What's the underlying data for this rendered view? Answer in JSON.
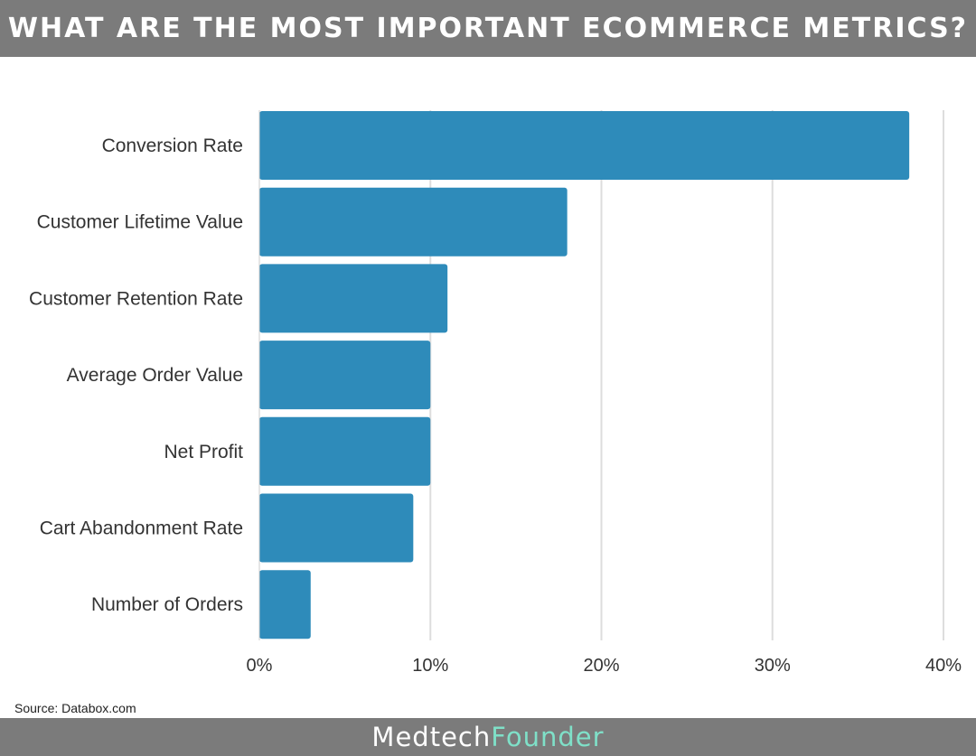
{
  "header": {
    "title": "WHAT ARE THE MOST IMPORTANT ECOMMERCE METRICS?"
  },
  "source": "Source: Databox.com",
  "footer": {
    "brand_part1": "Medtech",
    "brand_part2": "Founder"
  },
  "colors": {
    "bar": "#2e8bba",
    "header_bg": "#7b7b7b",
    "brand_accent": "#7fe0c8",
    "grid": "#dddddd"
  },
  "chart_data": {
    "type": "bar",
    "orientation": "horizontal",
    "categories": [
      "Conversion Rate",
      "Customer Lifetime Value",
      "Customer Retention Rate",
      "Average Order Value",
      "Net Profit",
      "Cart Abandonment Rate",
      "Number of Orders"
    ],
    "values": [
      38,
      18,
      11,
      10,
      10,
      9,
      3
    ],
    "xlim": [
      0,
      40
    ],
    "ticks": [
      0,
      10,
      20,
      30,
      40
    ],
    "tick_labels": [
      "0%",
      "10%",
      "20%",
      "30%",
      "40%"
    ],
    "grid": true
  }
}
